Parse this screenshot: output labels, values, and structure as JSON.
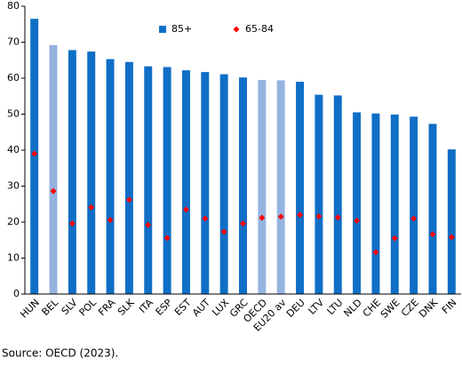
{
  "chart_data": {
    "type": "bar",
    "categories": [
      "HUN",
      "BEL",
      "SLV",
      "POL",
      "FRA",
      "SLK",
      "ITA",
      "ESP",
      "EST",
      "AUT",
      "LUX",
      "GRC",
      "OECD",
      "EU20 av",
      "DEU",
      "LTV",
      "LTU",
      "NLD",
      "CHE",
      "SWE",
      "CZE",
      "DNK",
      "FIN"
    ],
    "series": [
      {
        "name": "85+",
        "color": "#0f6fc6",
        "colors": [
          "#0f6fc6",
          "#95b3e0",
          "#0f6fc6",
          "#0f6fc6",
          "#0f6fc6",
          "#0f6fc6",
          "#0f6fc6",
          "#0f6fc6",
          "#0f6fc6",
          "#0f6fc6",
          "#0f6fc6",
          "#0f6fc6",
          "#95b3e0",
          "#95b3e0",
          "#0f6fc6",
          "#0f6fc6",
          "#0f6fc6",
          "#0f6fc6",
          "#0f6fc6",
          "#0f6fc6",
          "#0f6fc6",
          "#0f6fc6",
          "#0f6fc6"
        ],
        "values": [
          76.5,
          69.2,
          67.8,
          67.4,
          65.3,
          64.5,
          63.3,
          63.1,
          62.2,
          61.7,
          61.1,
          60.2,
          59.5,
          59.4,
          59.0,
          55.4,
          55.2,
          50.5,
          50.2,
          49.9,
          49.3,
          47.3,
          40.2
        ]
      },
      {
        "name": "65-84",
        "type": "marker",
        "color": "#ff0000",
        "values": [
          39.0,
          28.6,
          19.6,
          24.1,
          20.6,
          26.2,
          19.2,
          15.6,
          23.5,
          21.0,
          17.3,
          19.6,
          21.2,
          21.5,
          22.0,
          21.6,
          21.3,
          20.4,
          11.6,
          15.5,
          21.0,
          16.6,
          15.8
        ]
      }
    ],
    "ylim": [
      0,
      80
    ],
    "yticks": [
      0,
      10,
      20,
      30,
      40,
      50,
      60,
      70,
      80
    ],
    "source": "Source: OECD (2023)."
  }
}
